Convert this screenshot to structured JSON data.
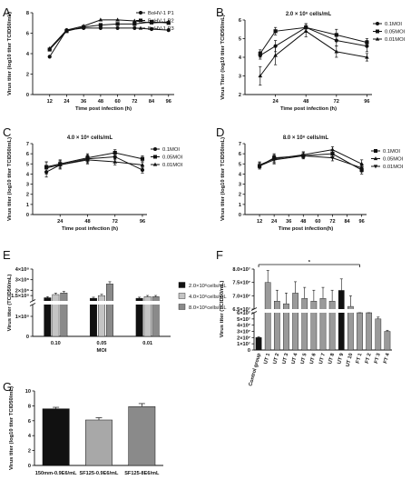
{
  "panel_letters": [
    "A",
    "B",
    "C",
    "D",
    "E",
    "F",
    "G"
  ],
  "chart_data": [
    {
      "panel": "A",
      "type": "line",
      "title": "",
      "xlabel": "Time post infection (h)",
      "ylabel": "Virus titer (log10 titer TCID50/mL)",
      "xlim": [
        0,
        100
      ],
      "ylim": [
        0,
        8
      ],
      "x_ticks": [
        12,
        24,
        36,
        48,
        60,
        72,
        84,
        96
      ],
      "y_ticks": [
        0,
        2,
        4,
        6,
        8
      ],
      "legend_position": "top-right",
      "series": [
        {
          "name": "BoHV-1 P1",
          "marker": "circle",
          "x": [
            12,
            24,
            36,
            48,
            60,
            72,
            84,
            96
          ],
          "y": [
            3.7,
            6.3,
            6.5,
            6.5,
            6.5,
            6.5,
            6.4,
            6.3
          ]
        },
        {
          "name": "BoHV-1 P2",
          "marker": "square",
          "x": [
            12,
            24,
            36,
            48,
            60,
            72,
            84,
            96
          ],
          "y": [
            4.4,
            6.2,
            6.6,
            6.8,
            6.9,
            6.9,
            7.1,
            7.0
          ]
        },
        {
          "name": "BoHV-1 P3",
          "marker": "triangle",
          "x": [
            12,
            24,
            36,
            48,
            60,
            72,
            84,
            96
          ],
          "y": [
            4.5,
            6.3,
            6.7,
            7.3,
            7.3,
            7.2,
            7.0,
            7.1
          ]
        }
      ]
    },
    {
      "panel": "B",
      "type": "line",
      "title": "2.0 × 10⁶ cells/mL",
      "xlabel": "Time post infection (h)",
      "ylabel": "Virus Titer (log10 titer TCID50/mL)",
      "xlim": [
        0,
        100
      ],
      "ylim": [
        2,
        6
      ],
      "x_ticks": [
        24,
        48,
        72,
        96
      ],
      "y_ticks": [
        2,
        3,
        4,
        5,
        6
      ],
      "legend_position": "right",
      "series": [
        {
          "name": "0.1MOI",
          "marker": "circle",
          "x": [
            12,
            24,
            48,
            72,
            96
          ],
          "y": [
            4.1,
            4.6,
            5.6,
            4.9,
            4.6
          ],
          "err": [
            0.2,
            0.3,
            0.2,
            0.3,
            0.3
          ]
        },
        {
          "name": "0.05MOI",
          "marker": "square",
          "x": [
            12,
            24,
            48,
            72,
            96
          ],
          "y": [
            4.2,
            5.4,
            5.6,
            5.2,
            4.8
          ],
          "err": [
            0.2,
            0.2,
            0.2,
            0.3,
            0.2
          ]
        },
        {
          "name": "0.01MOI",
          "marker": "triangle",
          "x": [
            12,
            24,
            48,
            72,
            96
          ],
          "y": [
            3.0,
            4.1,
            5.4,
            4.3,
            4.0
          ],
          "err": [
            0.5,
            0.5,
            0.3,
            0.3,
            0.2
          ]
        }
      ]
    },
    {
      "panel": "C",
      "type": "line",
      "title": "4.0 × 10⁶ cells/mL",
      "xlabel": "Time post infection (h)",
      "ylabel": "Virus titer (log10 titer TCID50/mL)",
      "xlim": [
        0,
        100
      ],
      "ylim": [
        0,
        7
      ],
      "x_ticks": [
        24,
        48,
        72,
        96
      ],
      "y_ticks": [
        0,
        1,
        2,
        3,
        4,
        5,
        6,
        7
      ],
      "legend_position": "top-right",
      "series": [
        {
          "name": "0.1MOI",
          "marker": "circle",
          "x": [
            12,
            24,
            48,
            72,
            96
          ],
          "y": [
            4.2,
            4.9,
            5.5,
            5.7,
            4.4
          ],
          "err": [
            0.5,
            0.4,
            0.4,
            0.3,
            0.3
          ]
        },
        {
          "name": "0.05MOI",
          "marker": "square",
          "x": [
            12,
            24,
            48,
            72,
            96
          ],
          "y": [
            4.7,
            5.0,
            5.6,
            6.1,
            5.5
          ],
          "err": [
            0.5,
            0.4,
            0.4,
            0.3,
            0.3
          ]
        },
        {
          "name": "0.01MOI",
          "marker": "triangle",
          "x": [
            12,
            24,
            48,
            72,
            96
          ],
          "y": [
            4.6,
            4.9,
            5.4,
            5.2,
            4.9
          ],
          "err": [
            0.6,
            0.4,
            0.4,
            0.3,
            0.3
          ]
        }
      ]
    },
    {
      "panel": "D",
      "type": "line",
      "title": "8.0 × 10⁶ cells/mL",
      "xlabel": "Time post infection(h)",
      "ylabel": "Virus titer (log10 titer TCID50/mL)",
      "xlim": [
        0,
        100
      ],
      "ylim": [
        0,
        7
      ],
      "x_ticks": [
        12,
        24,
        36,
        48,
        60,
        72,
        84,
        96
      ],
      "y_ticks": [
        0,
        1,
        2,
        3,
        4,
        5,
        6,
        7
      ],
      "legend_position": "right",
      "series": [
        {
          "name": "0.1MOI",
          "marker": "square",
          "x": [
            12,
            24,
            48,
            72,
            96
          ],
          "y": [
            4.8,
            5.6,
            5.8,
            6.0,
            4.4
          ],
          "err": [
            0.3,
            0.4,
            0.3,
            0.3,
            0.4
          ]
        },
        {
          "name": "0.05MOI",
          "marker": "triangle",
          "x": [
            12,
            24,
            48,
            72,
            96
          ],
          "y": [
            4.9,
            5.5,
            5.9,
            6.4,
            5.0
          ],
          "err": [
            0.3,
            0.4,
            0.3,
            0.3,
            0.4
          ]
        },
        {
          "name": "0.01MOI",
          "marker": "triangle-down",
          "x": [
            12,
            24,
            48,
            72,
            96
          ],
          "y": [
            4.8,
            5.4,
            5.8,
            5.6,
            4.6
          ],
          "err": [
            0.3,
            0.4,
            0.3,
            0.3,
            0.4
          ]
        }
      ]
    },
    {
      "panel": "E",
      "type": "bar",
      "title": "",
      "xlabel": "MOI",
      "ylabel": "Virus titer (TCID50/mL)",
      "categories": [
        "0.10",
        "0.05",
        "0.01"
      ],
      "y_ticks": [
        "0",
        "1×10⁸",
        "1.5×10⁸",
        "2×10⁸",
        "3×10⁸",
        "4×10⁸"
      ],
      "axis_break": true,
      "legend_position": "right",
      "series": [
        {
          "name": "2.0×10⁶cells/mL",
          "color": "#111111",
          "values": [
            130000000.0,
            125000000.0,
            125000000.0
          ]
        },
        {
          "name": "4.0×10⁶cells/mL",
          "color": "#c4c4c4",
          "values": [
            160000000.0,
            150000000.0,
            140000000.0
          ]
        },
        {
          "name": "8.0×10⁶cells/mL",
          "color": "#8a8a8a",
          "values": [
            175000000.0,
            260000000.0,
            140000000.0
          ]
        }
      ]
    },
    {
      "panel": "F",
      "type": "bar",
      "title": "",
      "xlabel": "",
      "ylabel": "Virus titer (TCID50/mL)",
      "categories": [
        "Control group",
        "UT 1",
        "UT 2",
        "UT 3",
        "UT 4",
        "UT 5",
        "UT 6",
        "UT 7",
        "UT 8",
        "UT 9",
        "UT 10",
        "FT 1",
        "FT 2",
        "FT 3",
        "FT 4"
      ],
      "values": [
        20000000.0,
        75000000.0,
        68000000.0,
        67000000.0,
        71000000.0,
        69000000.0,
        68000000.0,
        69000000.0,
        68000000.0,
        72000000.0,
        66000000.0,
        65000000.0,
        60000000.0,
        50000000.0,
        30000000.0
      ],
      "colors": [
        "#111111",
        "#9a9a9a",
        "#9a9a9a",
        "#9a9a9a",
        "#9a9a9a",
        "#9a9a9a",
        "#9a9a9a",
        "#9a9a9a",
        "#9a9a9a",
        "#111111",
        "#9a9a9a",
        "#9a9a9a",
        "#9a9a9a",
        "#9a9a9a",
        "#9a9a9a"
      ],
      "y_ticks_low": [
        "0",
        "1×10⁷",
        "2×10⁷",
        "3×10⁷",
        "4×10⁷",
        "5×10⁷",
        "6×10⁷"
      ],
      "y_ticks_high": [
        "6.5×10⁷",
        "7.0×10⁷",
        "7.5×10⁷",
        "8.0×10⁷"
      ],
      "axis_break": true,
      "significance": "*"
    },
    {
      "panel": "G",
      "type": "bar",
      "title": "",
      "xlabel": "",
      "ylabel": "Virus titer (log10 titer TCID50/mL)",
      "ylim": [
        0,
        10
      ],
      "y_ticks": [
        0,
        2,
        4,
        6,
        8,
        10
      ],
      "categories": [
        "150mm-0.9E6/mL",
        "SF125-0.9E6/mL",
        "SF125-8E6/mL"
      ],
      "values": [
        7.6,
        6.1,
        7.9
      ],
      "err": [
        0.2,
        0.3,
        0.4
      ],
      "colors": [
        "#111111",
        "#a8a8a8",
        "#8a8a8a"
      ]
    }
  ]
}
